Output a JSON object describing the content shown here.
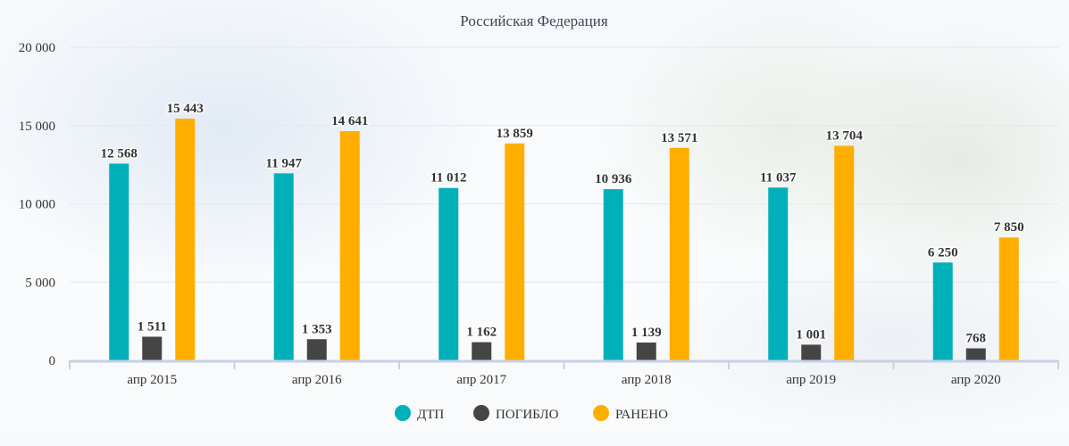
{
  "chart_data": {
    "type": "bar",
    "title": "Российская Федерация",
    "categories": [
      "апр 2015",
      "апр 2016",
      "апр 2017",
      "апр 2018",
      "апр 2019",
      "апр 2020"
    ],
    "series": [
      {
        "name": "ДТП",
        "color": "#00b0b8",
        "values": [
          12568,
          11947,
          11012,
          10936,
          11037,
          6250
        ],
        "labels": [
          "12 568",
          "11 947",
          "11 012",
          "10 936",
          "11 037",
          "6 250"
        ]
      },
      {
        "name": "ПОГИБЛО",
        "color": "#454545",
        "values": [
          1511,
          1353,
          1162,
          1139,
          1001,
          768
        ],
        "labels": [
          "1 511",
          "1 353",
          "1 162",
          "1 139",
          "1 001",
          "768"
        ]
      },
      {
        "name": "РАНЕНО",
        "color": "#ffae00",
        "values": [
          15443,
          14641,
          13859,
          13571,
          13704,
          7850
        ],
        "labels": [
          "15 443",
          "14 641",
          "13 859",
          "13 571",
          "13 704",
          "7 850"
        ]
      }
    ],
    "ylim": [
      0,
      20000
    ],
    "yticks": [
      0,
      5000,
      10000,
      15000,
      20000
    ],
    "ytick_labels": [
      "0",
      "5 000",
      "10 000",
      "15 000",
      "20 000"
    ],
    "grid": true,
    "legend_position": "bottom-center",
    "axis_color": "#c5d2e5"
  }
}
